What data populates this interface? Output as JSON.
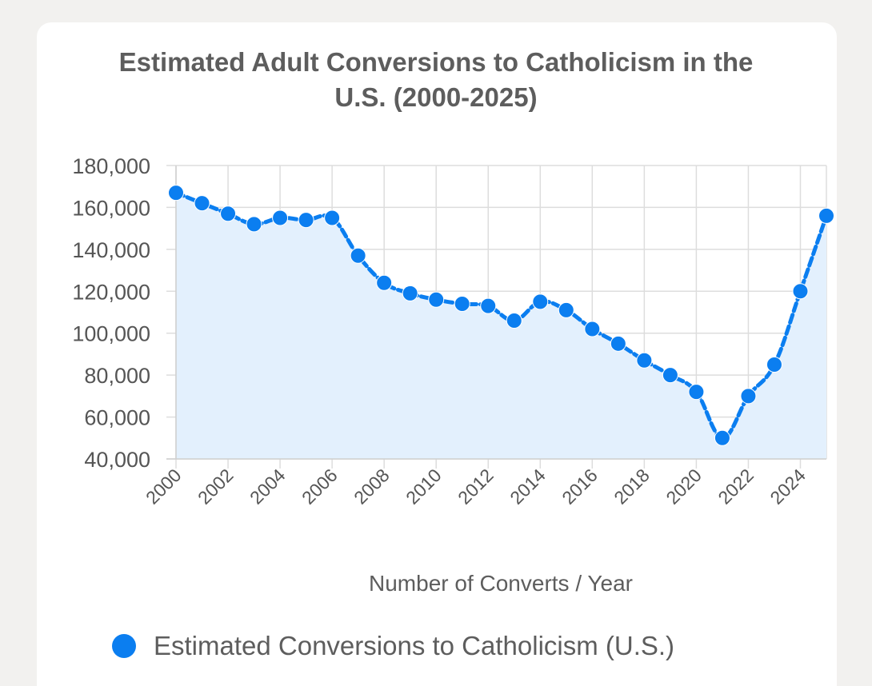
{
  "colors": {
    "series": "#0b7ef0",
    "area_fill": "#e3f0fd",
    "grid": "#dddddd",
    "text": "#5d5d5d"
  },
  "chart_data": {
    "type": "line",
    "title_lines": [
      "Estimated Adult Conversions to Catholicism in the",
      "U.S. (2000-2025)"
    ],
    "xlabel": "Number of Converts / Year",
    "ylabel": "",
    "x": [
      2000,
      2001,
      2002,
      2003,
      2004,
      2005,
      2006,
      2007,
      2008,
      2009,
      2010,
      2011,
      2012,
      2013,
      2014,
      2015,
      2016,
      2017,
      2018,
      2019,
      2020,
      2021,
      2022,
      2023,
      2024,
      2025
    ],
    "x_tick_labels": [
      "2000",
      "2002",
      "2004",
      "2006",
      "2008",
      "2010",
      "2012",
      "2014",
      "2016",
      "2018",
      "2020",
      "2022",
      "2024"
    ],
    "y_tick_values": [
      40000,
      60000,
      80000,
      100000,
      120000,
      140000,
      160000,
      180000
    ],
    "y_tick_labels": [
      "40,000",
      "60,000",
      "80,000",
      "100,000",
      "120,000",
      "140,000",
      "160,000",
      "180,000"
    ],
    "ylim": [
      40000,
      180000
    ],
    "xlim": [
      2000,
      2025
    ],
    "grid": true,
    "legend_position": "bottom",
    "series": [
      {
        "name": "Estimated Conversions to Catholicism (U.S.)",
        "values": [
          167000,
          162000,
          157000,
          152000,
          155000,
          154000,
          155000,
          137000,
          124000,
          119000,
          116000,
          114000,
          113000,
          106000,
          115000,
          111000,
          102000,
          95000,
          87000,
          80000,
          72000,
          50000,
          70000,
          85000,
          120000,
          156000
        ]
      }
    ]
  }
}
